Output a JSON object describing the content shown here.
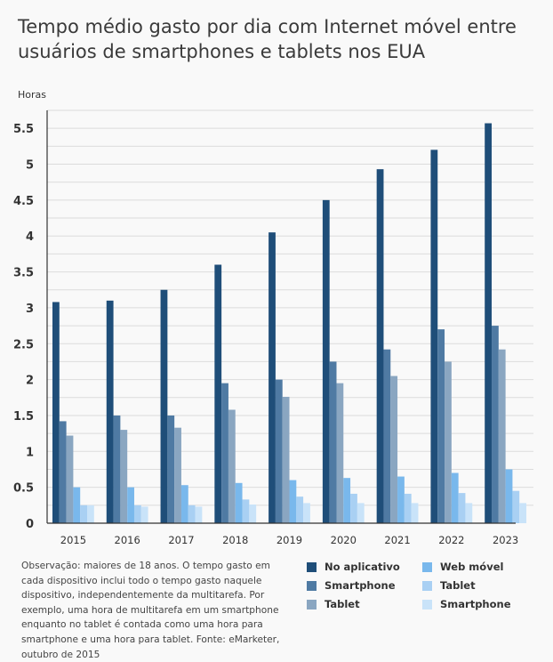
{
  "title": "Tempo médio gasto por dia com Internet móvel entre usuários de smartphones e tablets nos EUA",
  "note": "Observação: maiores de 18 anos. O tempo gasto em cada dispositivo inclui todo o tempo gasto naquele dispositivo, independentemente da multitarefa. Por exemplo, uma hora de multitarefa em um smartphone enquanto no tablet é contada como uma hora para smartphone e uma hora para tablet. Fonte: eMarketer, outubro de 2015",
  "chart_data": {
    "type": "bar",
    "ylabel": "Horas",
    "xlabel": "",
    "ylim": [
      0,
      5.75
    ],
    "yticks": [
      "0",
      "0.5",
      "1",
      "1.5",
      "2",
      "2.5",
      "3",
      "3.5",
      "4",
      "4.5",
      "5",
      "5.5"
    ],
    "grid": true,
    "legend_position": "bottom-right",
    "categories": [
      "2015",
      "2016",
      "2017",
      "2018",
      "2019",
      "2020",
      "2021",
      "2022",
      "2023"
    ],
    "series": [
      {
        "name": "No aplicativo",
        "color": "#1f4e79",
        "values": [
          3.08,
          3.1,
          3.25,
          3.6,
          4.05,
          4.5,
          4.93,
          5.2,
          5.57
        ]
      },
      {
        "name": "Smartphone",
        "color": "#4f7aa3",
        "values": [
          1.42,
          1.5,
          1.5,
          1.95,
          2.0,
          2.25,
          2.42,
          2.7,
          2.75
        ]
      },
      {
        "name": "Tablet",
        "color": "#8aa6c1",
        "values": [
          1.22,
          1.3,
          1.33,
          1.58,
          1.76,
          1.95,
          2.05,
          2.25,
          2.42
        ]
      },
      {
        "name": "Web móvel",
        "color": "#79b8ec",
        "values": [
          0.5,
          0.5,
          0.53,
          0.56,
          0.6,
          0.63,
          0.65,
          0.7,
          0.75
        ]
      },
      {
        "name": "Tablet",
        "color": "#a9d0f3",
        "values": [
          0.25,
          0.25,
          0.25,
          0.33,
          0.37,
          0.41,
          0.41,
          0.42,
          0.45
        ]
      },
      {
        "name": "Smartphone",
        "color": "#c9e3f9",
        "values": [
          0.25,
          0.23,
          0.23,
          0.26,
          0.28,
          0.28,
          0.28,
          0.28,
          0.28
        ]
      }
    ]
  }
}
